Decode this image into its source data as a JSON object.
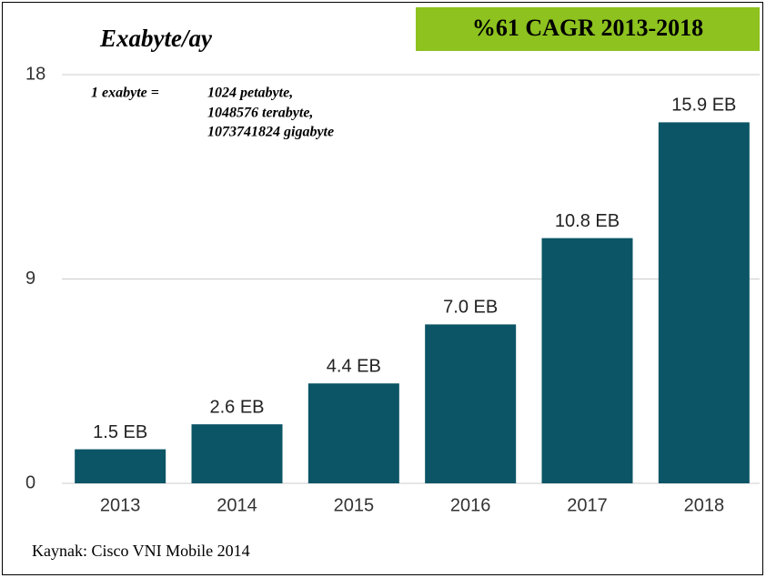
{
  "chart_data": {
    "type": "bar",
    "title": "Exabyte/ay",
    "badge": "%61 CAGR 2013-2018",
    "annotation": {
      "lead": "1 exabyte =",
      "lines": [
        "1024 petabyte,",
        "1048576 terabyte,",
        "1073741824 gigabyte"
      ]
    },
    "source": "Kaynak: Cisco VNI Mobile 2014",
    "categories": [
      "2013",
      "2014",
      "2015",
      "2016",
      "2017",
      "2018"
    ],
    "values": [
      1.5,
      2.6,
      4.4,
      7.0,
      10.8,
      15.9
    ],
    "value_labels": [
      "1.5 EB",
      "2.6 EB",
      "4.4 EB",
      "7.0 EB",
      "10.8 EB",
      "15.9 EB"
    ],
    "color": "#0b5566",
    "badge_color": "#8dc21f",
    "ylim": [
      0,
      18
    ],
    "yticks": [
      0,
      9,
      18
    ],
    "grid": true
  }
}
